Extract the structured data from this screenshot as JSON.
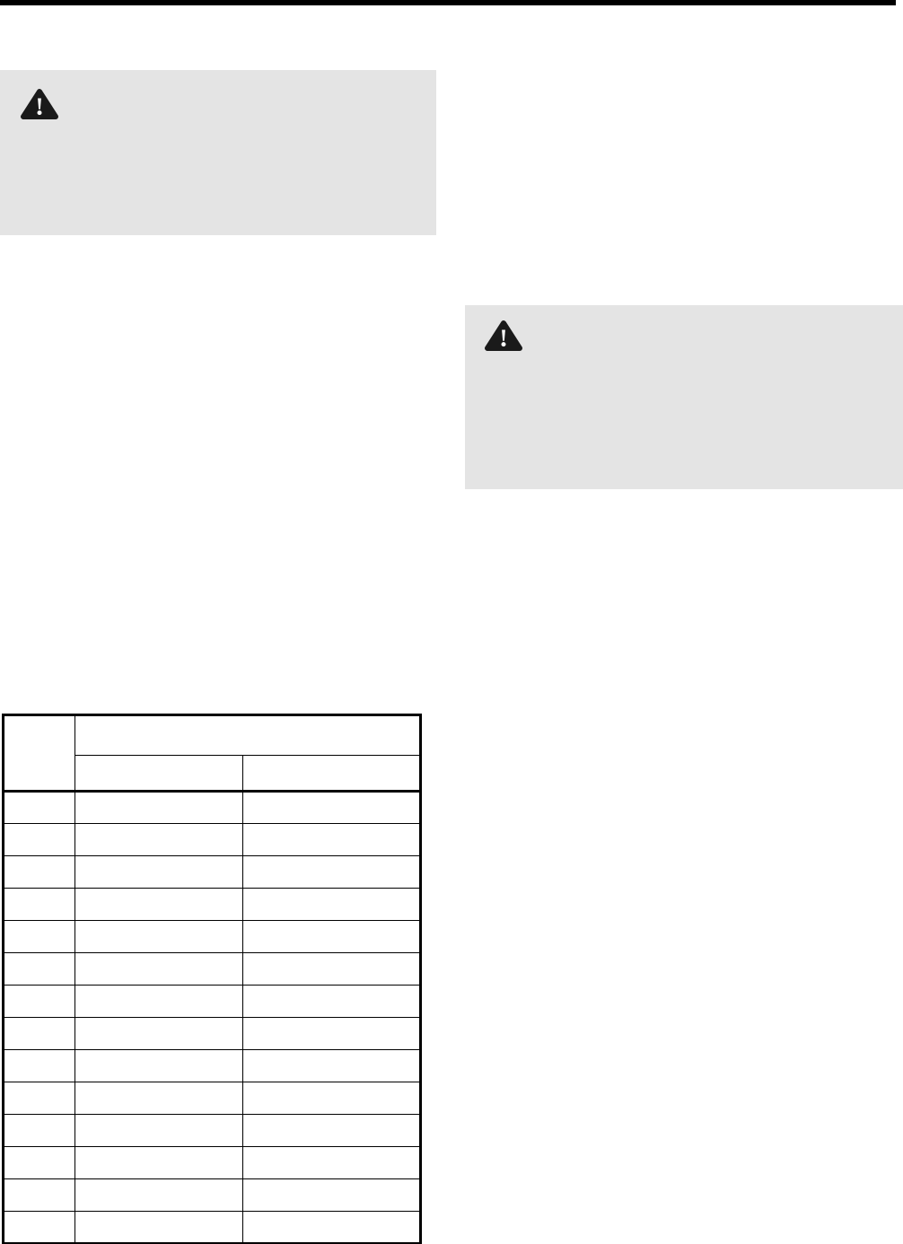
{
  "page": {
    "background_color": "#ffffff",
    "top_rule_color": "#000000"
  },
  "warning_callouts": {
    "background_color": "#e4e4e4",
    "icon_color": "#1a1a1a",
    "left": {
      "icon": "warning-triangle",
      "body_text": ""
    },
    "right": {
      "icon": "warning-triangle",
      "body_text": ""
    }
  },
  "table": {
    "border_color": "#000000",
    "corner_header": "",
    "group_header": "",
    "sub_headers": [
      "",
      ""
    ],
    "rows": [
      [
        "",
        "",
        ""
      ],
      [
        "",
        "",
        ""
      ],
      [
        "",
        "",
        ""
      ],
      [
        "",
        "",
        ""
      ],
      [
        "",
        "",
        ""
      ],
      [
        "",
        "",
        ""
      ],
      [
        "",
        "",
        ""
      ],
      [
        "",
        "",
        ""
      ],
      [
        "",
        "",
        ""
      ],
      [
        "",
        "",
        ""
      ],
      [
        "",
        "",
        ""
      ],
      [
        "",
        "",
        ""
      ],
      [
        "",
        "",
        ""
      ],
      [
        "",
        "",
        ""
      ]
    ]
  }
}
